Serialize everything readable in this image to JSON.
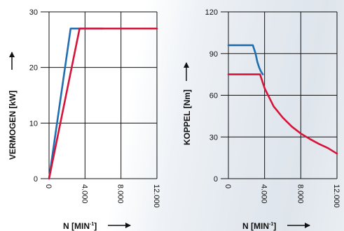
{
  "colors": {
    "blue": "#1f6fb2",
    "red": "#d6143a",
    "grid": "#111111"
  },
  "chart_data": [
    {
      "type": "line",
      "title": "",
      "xlabel": "N [MIN",
      "xlabel_sup": "-1",
      "xlabel_close": "]",
      "ylabel": "VERMOGEN [kW]",
      "xlim": [
        0,
        12000
      ],
      "ylim": [
        0,
        30
      ],
      "xticks": [
        0,
        4000,
        8000,
        12000
      ],
      "xtick_labels": [
        "0",
        "4.000",
        "8.000",
        "12.000"
      ],
      "yticks": [
        0,
        10,
        20,
        30
      ],
      "ytick_labels": [
        "0",
        "10",
        "20",
        "30"
      ],
      "grid": true,
      "series": [
        {
          "color": "blue",
          "x": [
            0,
            2400,
            6000
          ],
          "y": [
            0,
            27,
            27
          ]
        },
        {
          "color": "red",
          "x": [
            0,
            3400,
            12000
          ],
          "y": [
            0,
            27,
            27
          ]
        }
      ]
    },
    {
      "type": "line",
      "title": "",
      "xlabel": "N [MIN",
      "xlabel_sup": "-1",
      "xlabel_close": "]",
      "ylabel": "KOPPEL [Nm]",
      "xlim": [
        0,
        12000
      ],
      "ylim": [
        0,
        120
      ],
      "xticks": [
        0,
        4000,
        8000,
        12000
      ],
      "xtick_labels": [
        "0",
        "4.000",
        "8.000",
        "12.000"
      ],
      "yticks": [
        0,
        30,
        60,
        90,
        120
      ],
      "ytick_labels": [
        "0",
        "30",
        "60",
        "90",
        "120"
      ],
      "grid": true,
      "series": [
        {
          "color": "blue",
          "x": [
            0,
            2700,
            3000,
            3200,
            3400,
            3600,
            3800
          ],
          "y": [
            96,
            96,
            90,
            84,
            80,
            77,
            75
          ]
        },
        {
          "color": "red",
          "x": [
            0,
            3500,
            4000,
            5000,
            6000,
            7000,
            8000,
            9000,
            10000,
            11000,
            12000
          ],
          "y": [
            75,
            75,
            65,
            52,
            44,
            37.5,
            32.5,
            28.5,
            25,
            22,
            18
          ]
        }
      ]
    }
  ]
}
